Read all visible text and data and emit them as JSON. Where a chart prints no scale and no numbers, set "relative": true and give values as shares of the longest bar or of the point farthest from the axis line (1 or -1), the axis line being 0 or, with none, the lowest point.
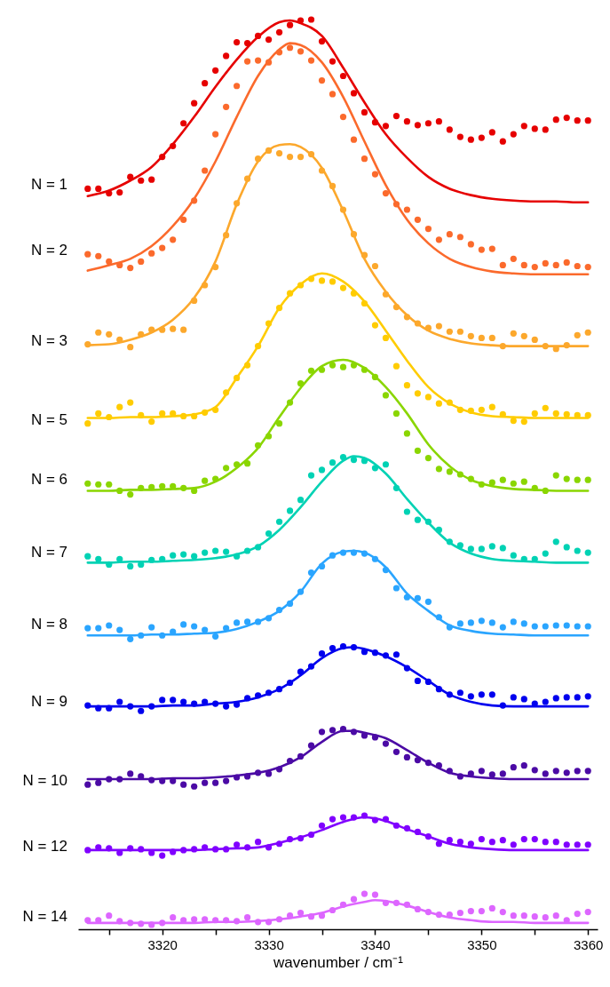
{
  "chart_data": {
    "type": "scatter",
    "relative": true,
    "marker": "circle",
    "line_style": "solid",
    "xlabel": "wavenumber / cm⁻¹",
    "xlim": [
      3312.1,
      3360.9
    ],
    "xticks": [
      {
        "value": 3315,
        "label": null
      },
      3320,
      {
        "value": 3325,
        "label": null
      },
      3330,
      {
        "value": 3335,
        "label": null
      },
      3340,
      {
        "value": 3345,
        "label": null
      },
      3350,
      {
        "value": 3355,
        "label": null
      },
      3360
    ],
    "x": [
      3313,
      3314,
      3315,
      3316,
      3317,
      3318,
      3319,
      3320,
      3321,
      3322,
      3323,
      3324,
      3325,
      3326,
      3327,
      3328,
      3329,
      3330,
      3331,
      3332,
      3333,
      3334,
      3335,
      3336,
      3337,
      3338,
      3339,
      3340,
      3341,
      3342,
      3343,
      3344,
      3345,
      3346,
      3347,
      3348,
      3349,
      3350,
      3351,
      3352,
      3353,
      3354,
      3355,
      3356,
      3357,
      3358,
      3359,
      3360
    ],
    "series": [
      {
        "name": "N = 1",
        "color": "#e60000",
        "values": [
          0.814,
          0.814,
          0.809,
          0.81,
          0.827,
          0.823,
          0.824,
          0.849,
          0.861,
          0.886,
          0.908,
          0.93,
          0.944,
          0.96,
          0.975,
          0.974,
          0.982,
          0.978,
          0.986,
          0.994,
          0.999,
          1.0,
          0.976,
          0.954,
          0.938,
          0.919,
          0.898,
          0.887,
          0.883,
          0.894,
          0.888,
          0.884,
          0.886,
          0.888,
          0.879,
          0.871,
          0.868,
          0.87,
          0.876,
          0.866,
          0.874,
          0.883,
          0.88,
          0.879,
          0.89,
          0.892,
          0.889,
          0.889
        ]
      },
      {
        "type": "line",
        "marker": "none",
        "color": "#e60000",
        "x": [
          3313,
          3315,
          3317,
          3319,
          3321,
          3323,
          3325,
          3327,
          3329,
          3331,
          3332,
          3333,
          3335,
          3337,
          3339,
          3341,
          3343,
          3345,
          3347,
          3349,
          3351,
          3353,
          3355,
          3357,
          3359,
          3360
        ],
        "values": [
          0.806,
          0.812,
          0.823,
          0.838,
          0.863,
          0.893,
          0.926,
          0.956,
          0.981,
          0.997,
          0.999,
          0.996,
          0.982,
          0.947,
          0.909,
          0.874,
          0.848,
          0.827,
          0.814,
          0.807,
          0.803,
          0.801,
          0.8,
          0.8,
          0.799,
          0.799
        ]
      },
      {
        "name": "N = 2",
        "color": "#fb6a2c",
        "values": [
          0.742,
          0.74,
          0.734,
          0.73,
          0.727,
          0.734,
          0.743,
          0.749,
          0.758,
          0.78,
          0.801,
          0.834,
          0.874,
          0.904,
          0.927,
          0.954,
          0.955,
          0.953,
          0.964,
          0.969,
          0.965,
          0.955,
          0.933,
          0.918,
          0.893,
          0.868,
          0.847,
          0.83,
          0.809,
          0.797,
          0.791,
          0.78,
          0.77,
          0.758,
          0.764,
          0.761,
          0.753,
          0.747,
          0.748,
          0.73,
          0.737,
          0.73,
          0.728,
          0.732,
          0.73,
          0.733,
          0.729,
          0.728
        ]
      },
      {
        "type": "line",
        "marker": "none",
        "color": "#fb6a2c",
        "x": [
          3313,
          3315,
          3317,
          3319,
          3321,
          3323,
          3325,
          3327,
          3329,
          3331,
          3332,
          3333,
          3335,
          3337,
          3339,
          3341,
          3343,
          3345,
          3347,
          3349,
          3351,
          3353,
          3355,
          3357,
          3359,
          3360
        ],
        "values": [
          0.724,
          0.73,
          0.737,
          0.751,
          0.773,
          0.803,
          0.844,
          0.893,
          0.938,
          0.967,
          0.974,
          0.972,
          0.953,
          0.915,
          0.866,
          0.818,
          0.78,
          0.754,
          0.737,
          0.728,
          0.723,
          0.721,
          0.72,
          0.72,
          0.72,
          0.72
        ]
      },
      {
        "name": "N = 3",
        "color": "#fca82c",
        "values": [
          0.643,
          0.656,
          0.654,
          0.648,
          0.64,
          0.654,
          0.659,
          0.659,
          0.66,
          0.659,
          0.691,
          0.708,
          0.728,
          0.763,
          0.798,
          0.825,
          0.847,
          0.856,
          0.853,
          0.849,
          0.849,
          0.852,
          0.834,
          0.817,
          0.791,
          0.764,
          0.741,
          0.729,
          0.698,
          0.684,
          0.673,
          0.666,
          0.661,
          0.663,
          0.657,
          0.657,
          0.652,
          0.65,
          0.65,
          0.641,
          0.655,
          0.652,
          0.648,
          0.641,
          0.638,
          0.642,
          0.653,
          0.656
        ]
      },
      {
        "type": "line",
        "marker": "none",
        "color": "#fca82c",
        "x": [
          3313,
          3315,
          3317,
          3319,
          3321,
          3323,
          3325,
          3327,
          3329,
          3331,
          3332,
          3333,
          3335,
          3337,
          3339,
          3341,
          3343,
          3345,
          3347,
          3349,
          3351,
          3353,
          3355,
          3357,
          3359,
          3360
        ],
        "values": [
          0.642,
          0.643,
          0.648,
          0.656,
          0.67,
          0.694,
          0.734,
          0.797,
          0.844,
          0.862,
          0.863,
          0.86,
          0.837,
          0.79,
          0.737,
          0.701,
          0.675,
          0.658,
          0.649,
          0.644,
          0.642,
          0.641,
          0.641,
          0.641,
          0.641,
          0.641
        ]
      },
      {
        "name": "N = 5",
        "color": "#ffcc00",
        "values": [
          0.556,
          0.567,
          0.563,
          0.574,
          0.579,
          0.565,
          0.558,
          0.567,
          0.567,
          0.564,
          0.564,
          0.568,
          0.571,
          0.59,
          0.606,
          0.62,
          0.641,
          0.666,
          0.683,
          0.699,
          0.708,
          0.715,
          0.713,
          0.712,
          0.705,
          0.699,
          0.688,
          0.664,
          0.65,
          0.619,
          0.598,
          0.589,
          0.585,
          0.578,
          0.579,
          0.571,
          0.57,
          0.571,
          0.574,
          0.566,
          0.559,
          0.558,
          0.567,
          0.573,
          0.567,
          0.566,
          0.565,
          0.565
        ]
      },
      {
        "type": "line",
        "marker": "none",
        "color": "#ffcc00",
        "x": [
          3313,
          3315,
          3317,
          3319,
          3321,
          3323,
          3325,
          3327,
          3329,
          3331,
          3333,
          3335,
          3337,
          3339,
          3341,
          3343,
          3345,
          3347,
          3349,
          3351,
          3353,
          3355,
          3357,
          3359,
          3360
        ],
        "values": [
          0.562,
          0.562,
          0.563,
          0.563,
          0.564,
          0.566,
          0.574,
          0.606,
          0.641,
          0.683,
          0.709,
          0.721,
          0.712,
          0.69,
          0.658,
          0.625,
          0.596,
          0.578,
          0.568,
          0.564,
          0.563,
          0.562,
          0.562,
          0.562,
          0.562
        ]
      },
      {
        "name": "N = 6",
        "color": "#8ad600",
        "values": [
          0.49,
          0.489,
          0.489,
          0.482,
          0.478,
          0.485,
          0.486,
          0.487,
          0.487,
          0.485,
          0.482,
          0.493,
          0.495,
          0.507,
          0.511,
          0.512,
          0.532,
          0.542,
          0.556,
          0.579,
          0.6,
          0.614,
          0.615,
          0.62,
          0.618,
          0.62,
          0.615,
          0.607,
          0.587,
          0.567,
          0.545,
          0.526,
          0.518,
          0.506,
          0.503,
          0.5,
          0.495,
          0.489,
          0.491,
          0.494,
          0.49,
          0.492,
          0.485,
          0.482,
          0.499,
          0.495,
          0.494,
          0.494
        ]
      },
      {
        "type": "line",
        "marker": "none",
        "color": "#8ad600",
        "x": [
          3313,
          3315,
          3317,
          3319,
          3321,
          3323,
          3325,
          3327,
          3329,
          3331,
          3333,
          3335,
          3337,
          3339,
          3341,
          3343,
          3345,
          3347,
          3349,
          3351,
          3353,
          3355,
          3357,
          3359,
          3360
        ],
        "values": [
          0.482,
          0.482,
          0.483,
          0.483,
          0.484,
          0.485,
          0.492,
          0.507,
          0.529,
          0.563,
          0.595,
          0.619,
          0.626,
          0.617,
          0.596,
          0.567,
          0.533,
          0.509,
          0.494,
          0.487,
          0.484,
          0.483,
          0.482,
          0.482,
          0.482
        ]
      },
      {
        "name": "N = 7",
        "color": "#00d2b4",
        "values": [
          0.41,
          0.407,
          0.401,
          0.407,
          0.399,
          0.401,
          0.406,
          0.407,
          0.411,
          0.412,
          0.41,
          0.414,
          0.416,
          0.415,
          0.41,
          0.416,
          0.42,
          0.435,
          0.448,
          0.46,
          0.472,
          0.499,
          0.505,
          0.513,
          0.519,
          0.516,
          0.515,
          0.507,
          0.511,
          0.485,
          0.459,
          0.45,
          0.448,
          0.439,
          0.426,
          0.422,
          0.418,
          0.418,
          0.421,
          0.419,
          0.411,
          0.407,
          0.407,
          0.413,
          0.426,
          0.42,
          0.416,
          0.414
        ]
      },
      {
        "type": "line",
        "marker": "none",
        "color": "#00d2b4",
        "x": [
          3313,
          3315,
          3317,
          3319,
          3321,
          3323,
          3325,
          3327,
          3329,
          3331,
          3333,
          3335,
          3337,
          3338,
          3339,
          3341,
          3343,
          3345,
          3347,
          3349,
          3351,
          3353,
          3355,
          3357,
          3359,
          3360
        ],
        "values": [
          0.403,
          0.403,
          0.404,
          0.404,
          0.405,
          0.406,
          0.408,
          0.412,
          0.421,
          0.439,
          0.464,
          0.492,
          0.515,
          0.52,
          0.518,
          0.501,
          0.473,
          0.447,
          0.425,
          0.413,
          0.407,
          0.405,
          0.404,
          0.403,
          0.403,
          0.403
        ]
      },
      {
        "name": "N = 8",
        "color": "#2aa5ff",
        "values": [
          0.331,
          0.331,
          0.334,
          0.329,
          0.319,
          0.323,
          0.332,
          0.323,
          0.327,
          0.335,
          0.333,
          0.329,
          0.322,
          0.331,
          0.337,
          0.338,
          0.338,
          0.342,
          0.351,
          0.358,
          0.371,
          0.392,
          0.399,
          0.411,
          0.414,
          0.414,
          0.413,
          0.407,
          0.395,
          0.375,
          0.365,
          0.364,
          0.36,
          0.343,
          0.332,
          0.336,
          0.337,
          0.339,
          0.337,
          0.332,
          0.338,
          0.336,
          0.333,
          0.333,
          0.334,
          0.334,
          0.333,
          0.333
        ]
      },
      {
        "type": "line",
        "marker": "none",
        "color": "#2aa5ff",
        "x": [
          3313,
          3315,
          3317,
          3319,
          3321,
          3323,
          3325,
          3327,
          3329,
          3331,
          3333,
          3335,
          3337,
          3338,
          3339,
          3341,
          3343,
          3345,
          3347,
          3349,
          3351,
          3353,
          3355,
          3357,
          3359,
          3360
        ],
        "values": [
          0.323,
          0.323,
          0.323,
          0.324,
          0.324,
          0.325,
          0.326,
          0.33,
          0.338,
          0.35,
          0.371,
          0.402,
          0.415,
          0.416,
          0.414,
          0.398,
          0.369,
          0.35,
          0.334,
          0.328,
          0.325,
          0.324,
          0.323,
          0.323,
          0.323,
          0.323
        ]
      },
      {
        "name": "N = 9",
        "color": "#0000ee",
        "values": [
          0.246,
          0.243,
          0.243,
          0.25,
          0.245,
          0.24,
          0.245,
          0.252,
          0.252,
          0.25,
          0.248,
          0.25,
          0.248,
          0.245,
          0.247,
          0.254,
          0.257,
          0.26,
          0.264,
          0.271,
          0.283,
          0.289,
          0.303,
          0.309,
          0.311,
          0.31,
          0.305,
          0.304,
          0.301,
          0.302,
          0.287,
          0.273,
          0.272,
          0.264,
          0.258,
          0.26,
          0.256,
          0.258,
          0.258,
          0.246,
          0.255,
          0.253,
          0.248,
          0.25,
          0.254,
          0.255,
          0.255,
          0.256
        ]
      },
      {
        "type": "line",
        "marker": "none",
        "color": "#0000ee",
        "x": [
          3313,
          3315,
          3317,
          3319,
          3321,
          3323,
          3325,
          3327,
          3329,
          3331,
          3333,
          3335,
          3337,
          3338,
          3339,
          3341,
          3343,
          3345,
          3347,
          3349,
          3351,
          3353,
          3355,
          3357,
          3359,
          3360
        ],
        "values": [
          0.245,
          0.245,
          0.245,
          0.245,
          0.246,
          0.246,
          0.248,
          0.25,
          0.255,
          0.264,
          0.279,
          0.298,
          0.309,
          0.31,
          0.308,
          0.3,
          0.288,
          0.273,
          0.258,
          0.25,
          0.246,
          0.245,
          0.245,
          0.245,
          0.245,
          0.245
        ]
      },
      {
        "name": "N = 10",
        "color": "#4b0aa5",
        "values": [
          0.159,
          0.161,
          0.165,
          0.165,
          0.171,
          0.168,
          0.164,
          0.163,
          0.163,
          0.159,
          0.157,
          0.161,
          0.161,
          0.163,
          0.167,
          0.168,
          0.172,
          0.171,
          0.176,
          0.185,
          0.19,
          0.202,
          0.217,
          0.219,
          0.22,
          0.217,
          0.213,
          0.211,
          0.204,
          0.195,
          0.189,
          0.186,
          0.183,
          0.18,
          0.174,
          0.168,
          0.171,
          0.174,
          0.17,
          0.171,
          0.178,
          0.18,
          0.175,
          0.171,
          0.174,
          0.172,
          0.174,
          0.174
        ]
      },
      {
        "type": "line",
        "marker": "none",
        "color": "#4b0aa5",
        "x": [
          3313,
          3315,
          3317,
          3319,
          3321,
          3323,
          3325,
          3327,
          3329,
          3331,
          3333,
          3335,
          3337,
          3338,
          3339,
          3341,
          3343,
          3345,
          3347,
          3349,
          3351,
          3353,
          3355,
          3357,
          3359,
          3360
        ],
        "values": [
          0.165,
          0.165,
          0.165,
          0.165,
          0.166,
          0.166,
          0.167,
          0.169,
          0.172,
          0.178,
          0.189,
          0.206,
          0.218,
          0.218,
          0.216,
          0.21,
          0.197,
          0.183,
          0.172,
          0.168,
          0.166,
          0.165,
          0.165,
          0.165,
          0.165,
          0.165
        ]
      },
      {
        "name": "N = 12",
        "color": "#8000ff",
        "values": [
          0.087,
          0.09,
          0.089,
          0.084,
          0.089,
          0.088,
          0.084,
          0.081,
          0.085,
          0.087,
          0.088,
          0.09,
          0.088,
          0.088,
          0.093,
          0.09,
          0.096,
          0.09,
          0.094,
          0.099,
          0.1,
          0.104,
          0.114,
          0.121,
          0.123,
          0.123,
          0.125,
          0.12,
          0.121,
          0.114,
          0.111,
          0.107,
          0.102,
          0.094,
          0.098,
          0.096,
          0.094,
          0.099,
          0.096,
          0.098,
          0.093,
          0.099,
          0.099,
          0.096,
          0.096,
          0.093,
          0.093,
          0.093
        ]
      },
      {
        "type": "line",
        "marker": "none",
        "color": "#8000ff",
        "x": [
          3313,
          3315,
          3317,
          3319,
          3321,
          3323,
          3325,
          3327,
          3329,
          3331,
          3333,
          3335,
          3337,
          3339,
          3341,
          3343,
          3345,
          3347,
          3349,
          3351,
          3353,
          3355,
          3357,
          3359,
          3360
        ],
        "values": [
          0.087,
          0.087,
          0.087,
          0.087,
          0.087,
          0.087,
          0.088,
          0.089,
          0.09,
          0.095,
          0.101,
          0.109,
          0.118,
          0.123,
          0.119,
          0.11,
          0.102,
          0.094,
          0.09,
          0.088,
          0.087,
          0.087,
          0.087,
          0.087,
          0.087
        ]
      },
      {
        "name": "N = 14",
        "color": "#dd66ff",
        "values": [
          0.01,
          0.01,
          0.015,
          0.009,
          0.007,
          0.006,
          0.005,
          0.007,
          0.013,
          0.01,
          0.011,
          0.011,
          0.01,
          0.01,
          0.009,
          0.013,
          0.008,
          0.008,
          0.011,
          0.015,
          0.018,
          0.014,
          0.015,
          0.021,
          0.027,
          0.033,
          0.039,
          0.038,
          0.029,
          0.029,
          0.027,
          0.022,
          0.019,
          0.016,
          0.016,
          0.018,
          0.02,
          0.02,
          0.023,
          0.019,
          0.015,
          0.015,
          0.014,
          0.013,
          0.015,
          0.01,
          0.017,
          0.019
        ]
      },
      {
        "type": "line",
        "marker": "none",
        "color": "#dd66ff",
        "x": [
          3313,
          3315,
          3317,
          3319,
          3321,
          3323,
          3325,
          3327,
          3329,
          3331,
          3333,
          3335,
          3337,
          3339,
          3340,
          3341,
          3343,
          3345,
          3347,
          3349,
          3351,
          3353,
          3355,
          3357,
          3359,
          3360
        ],
        "values": [
          0.007,
          0.007,
          0.007,
          0.007,
          0.007,
          0.007,
          0.008,
          0.008,
          0.009,
          0.011,
          0.014,
          0.018,
          0.025,
          0.03,
          0.032,
          0.031,
          0.026,
          0.019,
          0.013,
          0.01,
          0.008,
          0.008,
          0.007,
          0.007,
          0.007,
          0.007
        ]
      }
    ]
  }
}
